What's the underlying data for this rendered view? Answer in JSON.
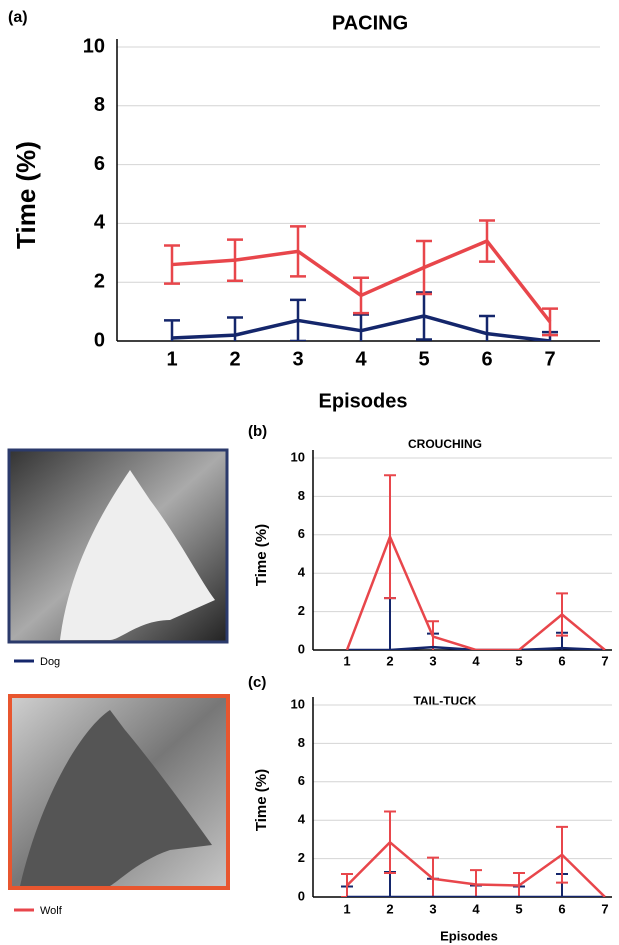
{
  "chart_data": [
    {
      "type": "line",
      "panel_label": "(a)",
      "title": "PACING",
      "x_label": "Episodes",
      "y_label": "Time (%)",
      "categories": [
        "1",
        "2",
        "3",
        "4",
        "5",
        "6",
        "7"
      ],
      "ylim": [
        0,
        10
      ],
      "yticks": [
        0,
        2,
        4,
        6,
        8,
        10
      ],
      "grid": true,
      "series": [
        {
          "name": "Dog",
          "color": "#14266b",
          "values": [
            0.1,
            0.2,
            0.7,
            0.35,
            0.85,
            0.25,
            0
          ],
          "errors": [
            0.6,
            0.6,
            0.7,
            0.55,
            0.8,
            0.6,
            0.3
          ]
        },
        {
          "name": "Wolf",
          "color": "#e8464b",
          "values": [
            2.6,
            2.75,
            3.05,
            1.55,
            2.5,
            3.4,
            0.65
          ],
          "errors": [
            0.65,
            0.7,
            0.85,
            0.6,
            0.9,
            0.7,
            0.45
          ]
        }
      ]
    },
    {
      "type": "line",
      "panel_label": "(b)",
      "title": "CROUCHING",
      "y_label": "Time (%)",
      "categories": [
        "1",
        "2",
        "3",
        "4",
        "5",
        "6",
        "7"
      ],
      "ylim": [
        0,
        10
      ],
      "yticks": [
        0,
        2,
        4,
        6,
        8,
        10
      ],
      "grid": true,
      "series": [
        {
          "name": "Dog",
          "color": "#14266b",
          "values": [
            0,
            0,
            0.15,
            0,
            0,
            0.1,
            0
          ],
          "errors": [
            0,
            2.7,
            0.7,
            0,
            0,
            0.8,
            0
          ]
        },
        {
          "name": "Wolf",
          "color": "#e8464b",
          "values": [
            0,
            5.9,
            0.7,
            0,
            0,
            1.85,
            0
          ],
          "errors": [
            0,
            3.2,
            0.8,
            0,
            0,
            1.1,
            0
          ]
        }
      ]
    },
    {
      "type": "line",
      "panel_label": "(c)",
      "title": "TAIL-TUCK",
      "x_label": "Episodes",
      "y_label": "Time (%)",
      "categories": [
        "1",
        "2",
        "3",
        "4",
        "5",
        "6",
        "7"
      ],
      "ylim": [
        0,
        10
      ],
      "yticks": [
        0,
        2,
        4,
        6,
        8,
        10
      ],
      "grid": true,
      "series": [
        {
          "name": "Dog",
          "color": "#14266b",
          "values": [
            0,
            0,
            0,
            0,
            0,
            0,
            0
          ],
          "errors": [
            0.55,
            1.3,
            0.95,
            0.6,
            0.55,
            1.2,
            0
          ]
        },
        {
          "name": "Wolf",
          "color": "#e8464b",
          "values": [
            0.6,
            2.85,
            0.95,
            0.65,
            0.6,
            2.2,
            0
          ],
          "errors": [
            0.6,
            1.6,
            1.1,
            0.75,
            0.65,
            1.45,
            0
          ]
        }
      ]
    }
  ]
}
